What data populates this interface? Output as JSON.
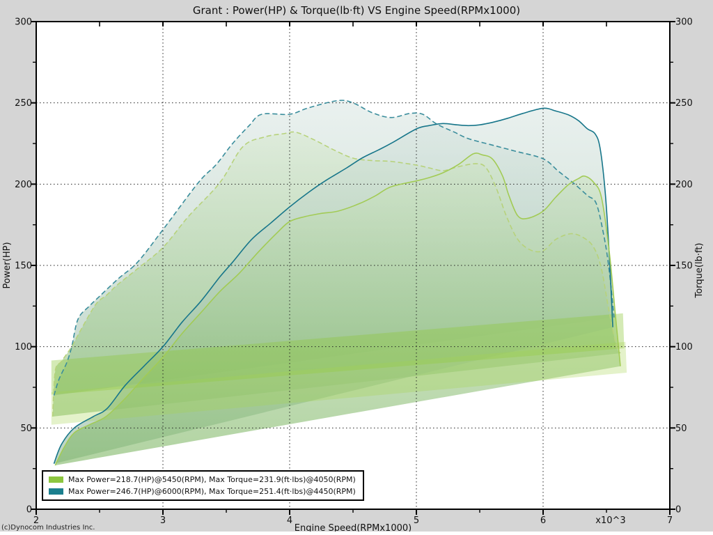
{
  "title": "Grant : Power(HP) & Torque(lb·ft) VS Engine Speed(RPMx1000)",
  "copyright": "(c)Dynocom Industries Inc.",
  "axes": {
    "x": {
      "label": "Engine Speed(RPMx1000)",
      "min": 2,
      "max": 7,
      "ticks": [
        2,
        3,
        4,
        5,
        6,
        7
      ],
      "minor_step": 0.5,
      "scale_note": "x10^3"
    },
    "y_left": {
      "label": "Power(HP)",
      "min": 0,
      "max": 300,
      "ticks": [
        300,
        250,
        200,
        150,
        100,
        50,
        0
      ],
      "minor_step": 25
    },
    "y_right": {
      "label": "Torque(lb·ft)",
      "min": 0,
      "max": 300,
      "ticks": [
        300,
        250,
        200,
        150,
        100,
        50,
        0
      ]
    }
  },
  "legend": {
    "items": [
      {
        "label": "Max Power=218.7(HP)@5450(RPM), Max Torque=231.9(ft·lbs)@4050(RPM)",
        "color": "#8dc63f"
      },
      {
        "label": "Max Power=246.7(HP)@6000(RPM), Max Torque=251.4(ft·lbs)@4450(RPM)",
        "color": "#1b7f8e"
      }
    ]
  },
  "colors": {
    "background": "#d5d5d5",
    "plot_background": "#ffffff",
    "frame": "#000000",
    "grid": "#222222",
    "green_fill_top": "#f6faf3",
    "green_fill_bottom": "#6fae52",
    "teal_fill_top": "#eef3f6",
    "teal_fill_bottom": "#7cab8a"
  },
  "chart_data": {
    "type": "line",
    "title": "Grant : Power(HP) & Torque(lb·ft) VS Engine Speed(RPMx1000)",
    "xlabel": "Engine Speed(RPMx1000)",
    "ylabel_left": "Power(HP)",
    "ylabel_right": "Torque(lb·ft)",
    "xlim": [
      2,
      7
    ],
    "ylim": [
      0,
      300
    ],
    "grid": "dotted",
    "legend_position": "bottom-left",
    "series": [
      {
        "id": "run2_torque",
        "run": 2,
        "quantity": "torque_lbft",
        "style": "dashed",
        "color": "#3a8d9c",
        "fill": "teal",
        "peak": {
          "value": 251.4,
          "rpm": 4450
        },
        "points": [
          [
            2.14,
            70
          ],
          [
            2.18,
            80
          ],
          [
            2.24,
            90
          ],
          [
            2.28,
            100
          ],
          [
            2.33,
            117
          ],
          [
            2.42,
            125
          ],
          [
            2.5,
            131
          ],
          [
            2.65,
            142
          ],
          [
            2.8,
            152
          ],
          [
            3.0,
            172
          ],
          [
            3.28,
            201
          ],
          [
            3.42,
            212
          ],
          [
            3.55,
            225
          ],
          [
            3.68,
            236
          ],
          [
            3.78,
            243
          ],
          [
            4.0,
            243
          ],
          [
            4.15,
            247
          ],
          [
            4.38,
            251.4
          ],
          [
            4.5,
            250
          ],
          [
            4.65,
            244
          ],
          [
            4.8,
            241
          ],
          [
            4.95,
            243.5
          ],
          [
            5.05,
            243
          ],
          [
            5.16,
            237
          ],
          [
            5.3,
            232
          ],
          [
            5.41,
            228
          ],
          [
            5.6,
            224
          ],
          [
            5.78,
            220.3
          ],
          [
            6.0,
            215.6
          ],
          [
            6.12,
            208
          ],
          [
            6.24,
            200.6
          ],
          [
            6.35,
            193
          ],
          [
            6.42,
            188
          ],
          [
            6.48,
            168
          ],
          [
            6.52,
            148
          ],
          [
            6.56,
            118
          ]
        ]
      },
      {
        "id": "run1_torque",
        "run": 1,
        "quantity": "torque_lbft",
        "style": "dashed",
        "color": "#b7d27b",
        "fill": "green",
        "peak": {
          "value": 231.9,
          "rpm": 4050
        },
        "points": [
          [
            2.13,
            57
          ],
          [
            2.15,
            85
          ],
          [
            2.2,
            91
          ],
          [
            2.28,
            100
          ],
          [
            2.35,
            110
          ],
          [
            2.47,
            126
          ],
          [
            2.56,
            132
          ],
          [
            2.64,
            138
          ],
          [
            2.8,
            148
          ],
          [
            3.0,
            161
          ],
          [
            3.2,
            180
          ],
          [
            3.45,
            201
          ],
          [
            3.63,
            223
          ],
          [
            3.8,
            229
          ],
          [
            3.95,
            231
          ],
          [
            4.05,
            231.9
          ],
          [
            4.2,
            227
          ],
          [
            4.35,
            221
          ],
          [
            4.5,
            216
          ],
          [
            4.65,
            214.5
          ],
          [
            4.8,
            214
          ],
          [
            5.0,
            211.7
          ],
          [
            5.1,
            210
          ],
          [
            5.21,
            208.3
          ],
          [
            5.32,
            210.5
          ],
          [
            5.47,
            212.6
          ],
          [
            5.55,
            210
          ],
          [
            5.63,
            197.6
          ],
          [
            5.71,
            180.4
          ],
          [
            5.8,
            166
          ],
          [
            5.9,
            159.5
          ],
          [
            6.0,
            159
          ],
          [
            6.1,
            166
          ],
          [
            6.22,
            169.5
          ],
          [
            6.32,
            167
          ],
          [
            6.4,
            161
          ],
          [
            6.46,
            148
          ],
          [
            6.52,
            122
          ],
          [
            6.58,
            100
          ],
          [
            6.61,
            96
          ]
        ]
      },
      {
        "id": "run2_power",
        "run": 2,
        "quantity": "power_hp",
        "style": "solid",
        "color": "#17768a",
        "fill": "teal",
        "peak": {
          "value": 246.7,
          "rpm": 6000
        },
        "points": [
          [
            2.14,
            28
          ],
          [
            2.2,
            40
          ],
          [
            2.3,
            50
          ],
          [
            2.45,
            57
          ],
          [
            2.56,
            62
          ],
          [
            2.7,
            76
          ],
          [
            2.85,
            88
          ],
          [
            3.0,
            100
          ],
          [
            3.15,
            115
          ],
          [
            3.3,
            128
          ],
          [
            3.45,
            143
          ],
          [
            3.55,
            152
          ],
          [
            3.7,
            166
          ],
          [
            3.85,
            176
          ],
          [
            4.0,
            186
          ],
          [
            4.15,
            195
          ],
          [
            4.28,
            202
          ],
          [
            4.45,
            210
          ],
          [
            4.57,
            216
          ],
          [
            4.7,
            221
          ],
          [
            4.81,
            225.5
          ],
          [
            5.0,
            234
          ],
          [
            5.1,
            236
          ],
          [
            5.21,
            237.3
          ],
          [
            5.32,
            236.5
          ],
          [
            5.41,
            236
          ],
          [
            5.5,
            236.5
          ],
          [
            5.6,
            238
          ],
          [
            5.72,
            240.5
          ],
          [
            5.84,
            243.5
          ],
          [
            6.0,
            246.7
          ],
          [
            6.1,
            245
          ],
          [
            6.2,
            242.6
          ],
          [
            6.28,
            239
          ],
          [
            6.35,
            234
          ],
          [
            6.41,
            231
          ],
          [
            6.45,
            222
          ],
          [
            6.49,
            195
          ],
          [
            6.52,
            160
          ],
          [
            6.55,
            112
          ]
        ]
      },
      {
        "id": "run1_power",
        "run": 1,
        "quantity": "power_hp",
        "style": "solid",
        "color": "#a2cb55",
        "fill": "green",
        "peak": {
          "value": 218.7,
          "rpm": 5450
        },
        "points": [
          [
            2.15,
            27
          ],
          [
            2.22,
            38
          ],
          [
            2.3,
            47
          ],
          [
            2.42,
            52
          ],
          [
            2.55,
            57
          ],
          [
            2.7,
            68
          ],
          [
            2.85,
            81
          ],
          [
            3.0,
            93.5
          ],
          [
            3.15,
            108
          ],
          [
            3.3,
            121
          ],
          [
            3.45,
            134
          ],
          [
            3.6,
            145
          ],
          [
            3.75,
            158
          ],
          [
            3.9,
            170
          ],
          [
            4.0,
            177
          ],
          [
            4.12,
            180
          ],
          [
            4.25,
            182
          ],
          [
            4.38,
            183.4
          ],
          [
            4.55,
            188
          ],
          [
            4.68,
            193
          ],
          [
            4.8,
            198.4
          ],
          [
            5.0,
            202
          ],
          [
            5.1,
            204
          ],
          [
            5.21,
            207
          ],
          [
            5.33,
            212
          ],
          [
            5.45,
            218.7
          ],
          [
            5.52,
            218
          ],
          [
            5.6,
            215.5
          ],
          [
            5.68,
            205
          ],
          [
            5.73,
            193
          ],
          [
            5.8,
            180.5
          ],
          [
            5.88,
            179
          ],
          [
            6.0,
            183.4
          ],
          [
            6.1,
            192
          ],
          [
            6.2,
            199.7
          ],
          [
            6.28,
            203.5
          ],
          [
            6.33,
            204.9
          ],
          [
            6.4,
            201
          ],
          [
            6.46,
            192
          ],
          [
            6.52,
            160
          ],
          [
            6.57,
            120
          ],
          [
            6.61,
            88
          ]
        ]
      }
    ],
    "bands": [
      {
        "id": "band-upper",
        "color": "#8fc93c",
        "opacity": 0.38,
        "points": [
          [
            2.12,
            91.5
          ],
          [
            6.63,
            120.5
          ],
          [
            6.64,
            99
          ],
          [
            2.12,
            70.5
          ]
        ]
      },
      {
        "id": "band-lower",
        "color": "#a5d34f",
        "opacity": 0.3,
        "points": [
          [
            2.12,
            72
          ],
          [
            6.65,
            103
          ],
          [
            6.66,
            84
          ],
          [
            2.12,
            52
          ]
        ]
      }
    ]
  }
}
